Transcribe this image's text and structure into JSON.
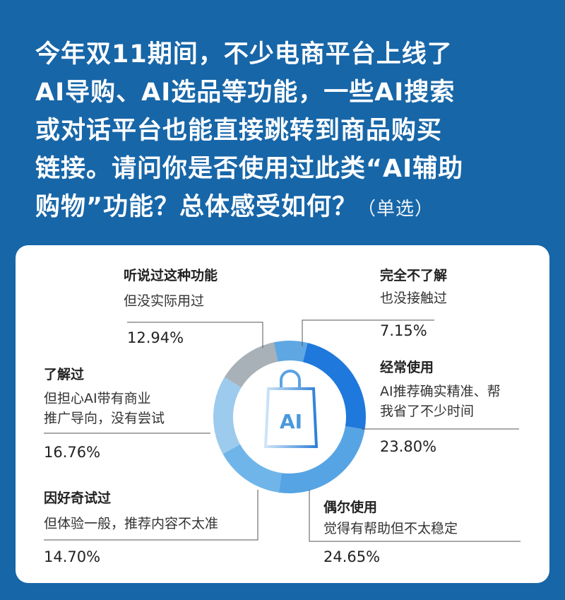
{
  "title": {
    "lines": [
      "今年双11期间，不少电商平台上线了",
      "AI导购、AI选品等功能，一些AI搜索",
      "或对话平台也能直接跳转到商品购买",
      "链接。请问你是否使用过此类“AI辅助",
      "购物”功能？总体感受如何？"
    ],
    "note": "（单选）"
  },
  "center_icon": {
    "name": "shopping-bag-ai-icon",
    "text": "AI"
  },
  "chart_data": {
    "type": "pie",
    "donut": true,
    "slices": [
      {
        "heading": "完全不了解",
        "sub": [
          "也没接触过"
        ],
        "label": "7.15%",
        "value": 7.15,
        "color": "#5ea7e2"
      },
      {
        "heading": "经常使用",
        "sub": [
          "AI推荐确实精准、帮",
          "我省了不少时间"
        ],
        "label": "23.80%",
        "value": 23.8,
        "color": "#1f78dc"
      },
      {
        "heading": "偶尔使用",
        "sub": [
          "觉得有帮助但不太稳定"
        ],
        "label": "24.65%",
        "value": 24.65,
        "color": "#56a4e4"
      },
      {
        "heading": "因好奇试过",
        "sub": [
          "但体验一般，推荐内容不太准"
        ],
        "label": "14.70%",
        "value": 14.7,
        "color": "#6fb5ea"
      },
      {
        "heading": "了解过",
        "sub": [
          "但担心AI带有商业",
          "推广导向，没有尝试"
        ],
        "label": "16.76%",
        "value": 16.76,
        "color": "#9dcbee"
      },
      {
        "heading": "听说过这种功能",
        "sub": [
          "但没实际用过"
        ],
        "label": "12.94%",
        "value": 12.94,
        "color": "#a8b1b7"
      }
    ]
  }
}
